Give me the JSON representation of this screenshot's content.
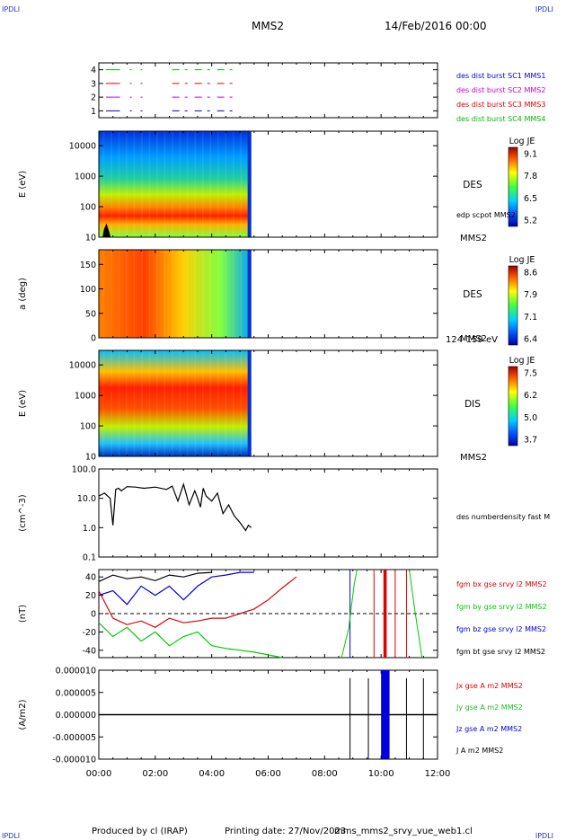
{
  "header": {
    "corner_label": "IPDLI",
    "spacecraft": "MMS2",
    "date": "14/Feb/2016 00:00"
  },
  "footer": {
    "produced_by": "Produced by cl (IRAP)",
    "printing_date": "Printing date: 27/Nov/2023",
    "script_name": "mms_mms2_srvy_vue_web1.cl"
  },
  "time_axis": {
    "range_hours": [
      0,
      12
    ],
    "ticks": [
      "00:00",
      "02:00",
      "04:00",
      "06:00",
      "08:00",
      "10:00",
      "12:00"
    ],
    "data_end_hours": 5.4
  },
  "chart_data": [
    {
      "type": "line",
      "id": "burst",
      "yticks": [
        "1",
        "2",
        "3",
        "4"
      ],
      "ylim": [
        0.5,
        4.5
      ],
      "series": [
        {
          "name": "des dist burst SC1 MMS1",
          "color": "#0000cc",
          "level": 1
        },
        {
          "name": "des dist burst SC2 MMS2",
          "color": "#cc00cc",
          "level": 2
        },
        {
          "name": "des dist burst SC3 MMS3",
          "color": "#dd0000",
          "level": 3
        },
        {
          "name": "des dist burst SC4 MMS4",
          "color": "#00bb00",
          "level": 4
        }
      ]
    },
    {
      "type": "heatmap",
      "id": "des_energy",
      "ylabel": "E (eV)",
      "scale": "log",
      "ylim": [
        10,
        30000
      ],
      "yticks": [
        "10",
        "100",
        "1000",
        "10000"
      ],
      "label": "DES",
      "right_label": "MMS2",
      "annotation": "edp scpot MMS2",
      "colorbar": {
        "title": "Log JE",
        "ticks": [
          "9.1",
          "7.8",
          "6.5",
          "5.2"
        ]
      }
    },
    {
      "type": "heatmap",
      "id": "des_pitch",
      "ylabel": "a (deg)",
      "ylim": [
        0,
        180
      ],
      "yticks": [
        "0",
        "50",
        "100",
        "150"
      ],
      "label": "DES",
      "right_label": "MMS2",
      "energy_range": "124-159 eV",
      "colorbar": {
        "title": "Log JE",
        "ticks": [
          "8.6",
          "7.9",
          "7.1",
          "6.4"
        ]
      }
    },
    {
      "type": "heatmap",
      "id": "dis_energy",
      "ylabel": "E (eV)",
      "scale": "log",
      "ylim": [
        10,
        30000
      ],
      "yticks": [
        "10",
        "100",
        "1000",
        "10000"
      ],
      "label": "DIS",
      "right_label": "MMS2",
      "colorbar": {
        "title": "Log JE",
        "ticks": [
          "7.5",
          "6.2",
          "5.0",
          "3.7"
        ]
      }
    },
    {
      "type": "line",
      "id": "density",
      "ylabel": "(cm^-3)",
      "scale": "log",
      "ylim": [
        0.1,
        100
      ],
      "yticks": [
        "0.1",
        "1.0",
        "10.0",
        "100.0"
      ],
      "series": [
        {
          "name": "des numberdensity fast M",
          "color": "#000000",
          "x": [
            0.0,
            0.2,
            0.4,
            0.5,
            0.6,
            0.7,
            0.8,
            1.0,
            1.3,
            1.6,
            2.0,
            2.4,
            2.6,
            2.8,
            3.0,
            3.2,
            3.4,
            3.5,
            3.6,
            3.7,
            3.8,
            4.0,
            4.2,
            4.4,
            4.6,
            4.8,
            5.0,
            5.2,
            5.3,
            5.4
          ],
          "y": [
            12,
            15,
            10,
            1.2,
            20,
            22,
            18,
            25,
            24,
            22,
            24,
            20,
            26,
            8,
            30,
            6,
            18,
            10,
            5,
            22,
            12,
            8,
            15,
            3,
            6,
            2.5,
            1.5,
            0.8,
            1.2,
            1.0
          ]
        }
      ]
    },
    {
      "type": "line",
      "id": "magnetic_field",
      "ylabel": "(nT)",
      "ylim": [
        -48,
        48
      ],
      "yticks": [
        "-40",
        "-20",
        "0",
        "20",
        "40"
      ],
      "series": [
        {
          "name": "fgm bx gse srvy l2 MMS2",
          "color": "#dd0000",
          "x": [
            0,
            0.5,
            1,
            1.5,
            2,
            2.5,
            3,
            3.5,
            4,
            4.5,
            5,
            5.5,
            6,
            6.5,
            7
          ],
          "y": [
            25,
            -5,
            -12,
            -8,
            -15,
            -5,
            -10,
            -8,
            -5,
            -5,
            0,
            5,
            15,
            28,
            40
          ]
        },
        {
          "name": "fgm by gse srvy l2 MMS2",
          "color": "#00cc00",
          "x": [
            0,
            0.5,
            1,
            1.5,
            2,
            2.5,
            3,
            3.5,
            4,
            4.5,
            5,
            5.5,
            6,
            6.5
          ],
          "y": [
            -10,
            -25,
            -15,
            -30,
            -20,
            -35,
            -25,
            -20,
            -35,
            -38,
            -40,
            -42,
            -45,
            -48
          ]
        },
        {
          "name": "fgm bz gse srvy l2 MMS2",
          "color": "#0000dd",
          "x": [
            0,
            0.5,
            1,
            1.5,
            2,
            2.5,
            3,
            3.5,
            4,
            4.5,
            5,
            5.5
          ],
          "y": [
            20,
            25,
            10,
            30,
            20,
            30,
            15,
            30,
            40,
            42,
            45,
            45
          ]
        },
        {
          "name": "fgm bt gse srvy l2 MMS2",
          "color": "#000000",
          "x": [
            0,
            0.5,
            1,
            1.5,
            2,
            2.5,
            3,
            3.5,
            4
          ],
          "y": [
            35,
            42,
            38,
            40,
            36,
            42,
            40,
            44,
            45
          ]
        }
      ]
    },
    {
      "type": "line",
      "id": "current",
      "ylabel": "(A/m2)",
      "ylim": [
        -1e-05,
        1e-05
      ],
      "yticks": [
        "-0.000010",
        "-0.000005",
        "0.000000",
        "0.000005",
        "0.000010"
      ],
      "series": [
        {
          "name": "Jx gse A m2 MMS2",
          "color": "#dd0000"
        },
        {
          "name": "Jy gse A m2 MMS2",
          "color": "#22bb22"
        },
        {
          "name": "Jz gse A m2 MMS2",
          "color": "#0000dd"
        },
        {
          "name": "J A m2 MMS2",
          "color": "#000000"
        }
      ]
    }
  ]
}
